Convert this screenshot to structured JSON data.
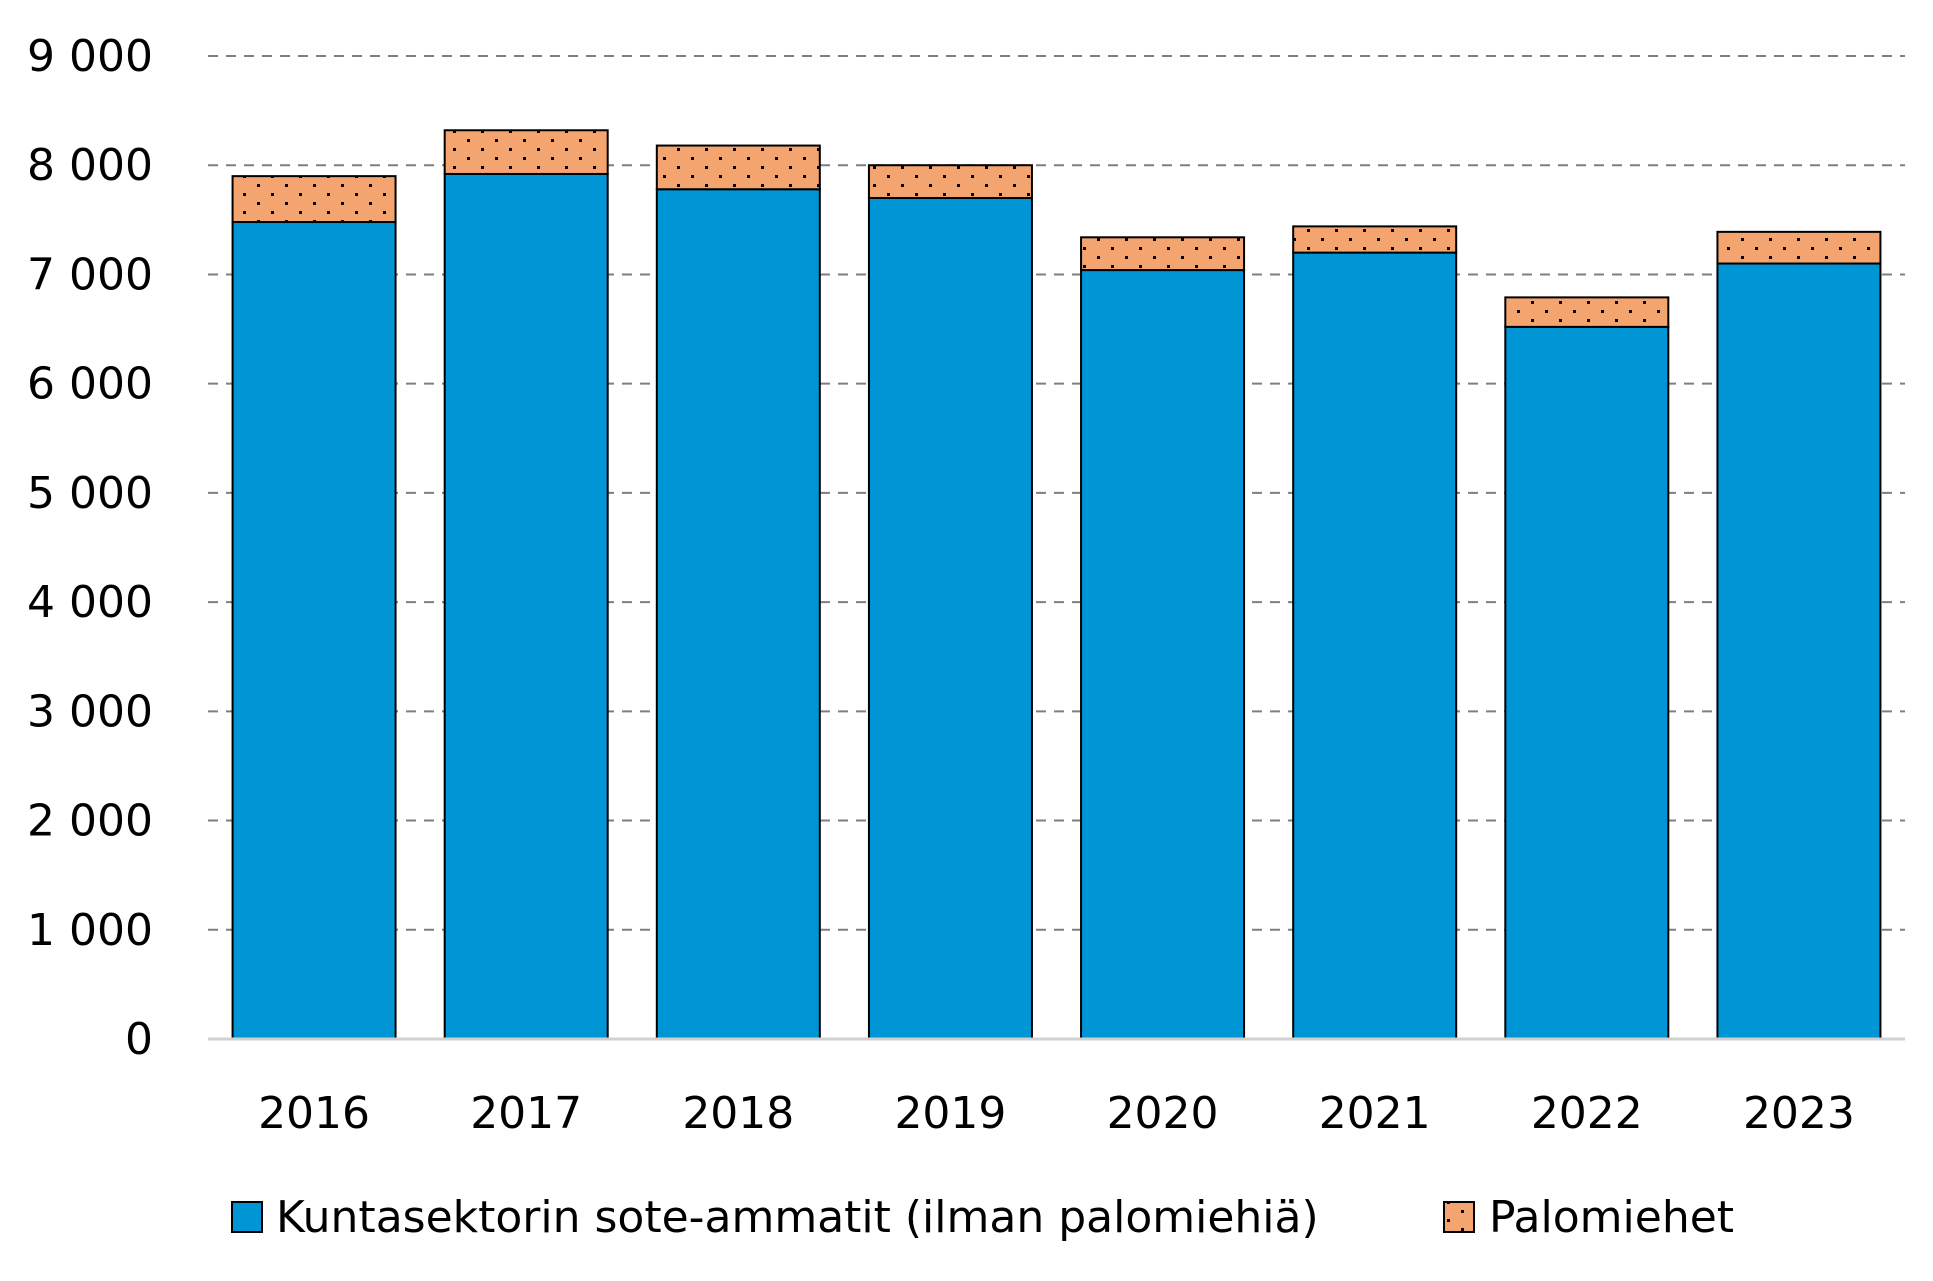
{
  "chart_data": {
    "type": "bar",
    "stacked": true,
    "categories": [
      "2016",
      "2017",
      "2018",
      "2019",
      "2020",
      "2021",
      "2022",
      "2023"
    ],
    "series": [
      {
        "name": "Kuntasektorin sote-ammatit (ilman palomiehiä)",
        "values": [
          7480,
          7920,
          7780,
          7700,
          7040,
          7200,
          6520,
          7100
        ],
        "color": "#0096d6",
        "pattern": "solid"
      },
      {
        "name": "Palomiehet",
        "values": [
          420,
          400,
          400,
          300,
          300,
          240,
          270,
          290
        ],
        "color": "#f4a46e",
        "pattern": "dotted"
      }
    ],
    "ylim": [
      0,
      9000
    ],
    "yticks": [
      {
        "value": 0,
        "label": "0"
      },
      {
        "value": 1000,
        "label": "1 000"
      },
      {
        "value": 2000,
        "label": "2 000"
      },
      {
        "value": 3000,
        "label": "3 000"
      },
      {
        "value": 4000,
        "label": "4 000"
      },
      {
        "value": 5000,
        "label": "5 000"
      },
      {
        "value": 6000,
        "label": "6 000"
      },
      {
        "value": 7000,
        "label": "7 000"
      },
      {
        "value": 8000,
        "label": "8 000"
      },
      {
        "value": 9000,
        "label": "9 000"
      }
    ],
    "grid": true,
    "grid_style": "dashed",
    "legend_position": "bottom",
    "title": "",
    "xlabel": "",
    "ylabel": ""
  }
}
